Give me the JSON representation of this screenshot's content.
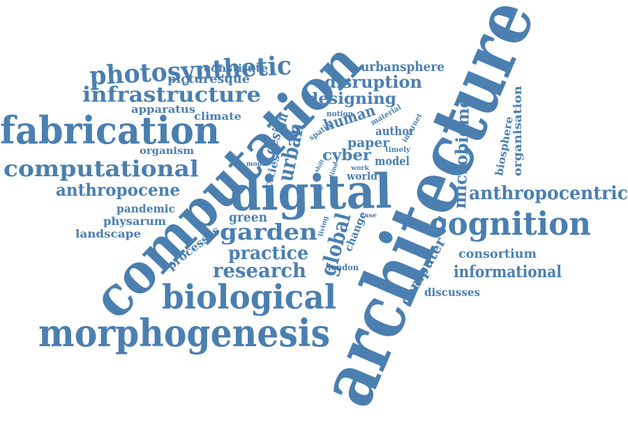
{
  "cloud": {
    "color": "#4a7fb0",
    "words": [
      {
        "id": "architecture",
        "text": "architecture"
      },
      {
        "id": "computation",
        "text": "computation"
      },
      {
        "id": "digital",
        "text": "digital"
      },
      {
        "id": "fabrication",
        "text": "fabrication"
      },
      {
        "id": "morphogenesis",
        "text": "morphogenesis"
      },
      {
        "id": "biological",
        "text": "biological"
      },
      {
        "id": "cognition",
        "text": "cognition"
      },
      {
        "id": "computational",
        "text": "computational"
      },
      {
        "id": "photosynthetic",
        "text": "photosynthetic"
      },
      {
        "id": "infrastructure",
        "text": "infrastructure"
      },
      {
        "id": "garden",
        "text": "garden"
      },
      {
        "id": "research",
        "text": "research"
      },
      {
        "id": "practice",
        "text": "practice"
      },
      {
        "id": "anthropocentric",
        "text": "anthropocentric"
      },
      {
        "id": "anthropocene",
        "text": "anthropocene"
      },
      {
        "id": "informational",
        "text": "informational"
      },
      {
        "id": "microbiome",
        "text": "microbiome"
      },
      {
        "id": "urban",
        "text": "urban"
      },
      {
        "id": "global",
        "text": "global"
      },
      {
        "id": "disruption",
        "text": "disruption"
      },
      {
        "id": "designing",
        "text": "designing"
      },
      {
        "id": "urbansphere",
        "text": "urbansphere"
      },
      {
        "id": "human",
        "text": "human"
      },
      {
        "id": "cyber",
        "text": "cyber"
      },
      {
        "id": "paper",
        "text": "paper"
      },
      {
        "id": "author",
        "text": "author"
      },
      {
        "id": "design",
        "text": "design"
      },
      {
        "id": "computer",
        "text": "computer"
      },
      {
        "id": "consortium",
        "text": "consortium"
      },
      {
        "id": "organisation",
        "text": "organisation"
      },
      {
        "id": "biosphere",
        "text": "biosphere"
      },
      {
        "id": "model",
        "text": "model"
      },
      {
        "id": "world",
        "text": "world"
      },
      {
        "id": "processes",
        "text": "processes"
      },
      {
        "id": "green",
        "text": "green"
      },
      {
        "id": "pandemic",
        "text": "pandemic"
      },
      {
        "id": "physarum",
        "text": "physarum"
      },
      {
        "id": "landscape",
        "text": "landscape"
      },
      {
        "id": "discusses",
        "text": "discusses"
      },
      {
        "id": "picturesque",
        "text": "picturesque"
      },
      {
        "id": "constitute",
        "text": "constitute"
      },
      {
        "id": "apparatus",
        "text": "apparatus"
      },
      {
        "id": "climate",
        "text": "climate"
      },
      {
        "id": "organism",
        "text": "organism"
      },
      {
        "id": "cities",
        "text": "cities"
      },
      {
        "id": "change",
        "text": "change"
      },
      {
        "id": "london",
        "text": "london"
      },
      {
        "id": "notion",
        "text": "notion"
      },
      {
        "id": "spatial",
        "text": "spatial"
      },
      {
        "id": "material",
        "text": "material"
      },
      {
        "id": "internet",
        "text": "internet"
      },
      {
        "id": "timely",
        "text": "timely"
      },
      {
        "id": "work",
        "text": "work"
      },
      {
        "id": "time",
        "text": "time"
      },
      {
        "id": "mode",
        "text": "mode"
      },
      {
        "id": "shift",
        "text": "shift"
      },
      {
        "id": "more",
        "text": "more"
      },
      {
        "id": "living",
        "text": "living"
      },
      {
        "id": "case",
        "text": "case"
      }
    ]
  }
}
